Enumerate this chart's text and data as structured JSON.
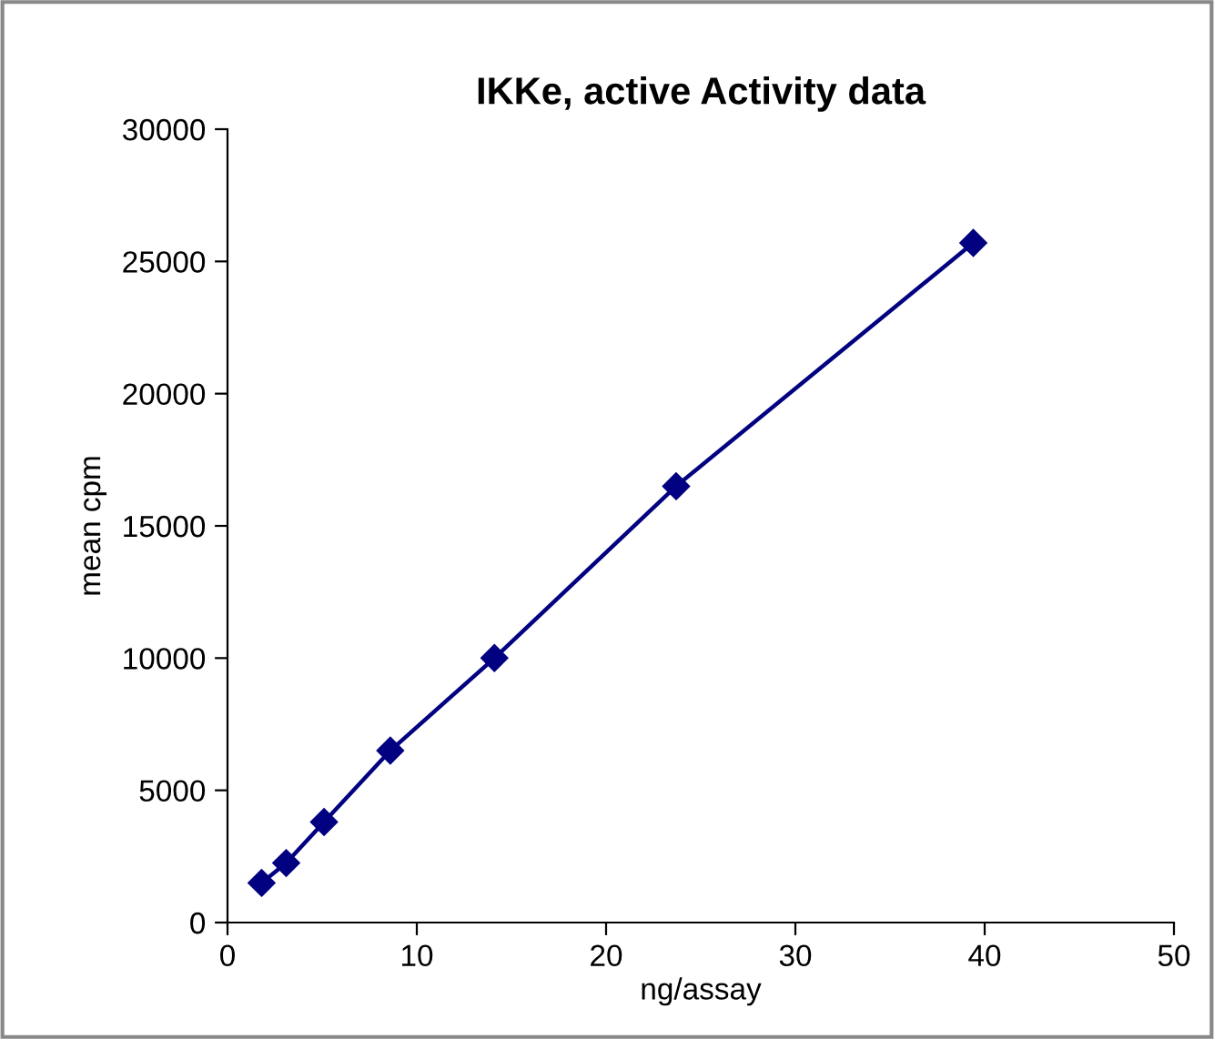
{
  "chart_data": {
    "type": "line",
    "title": "IKKe, active Activity data",
    "xlabel": "ng/assay",
    "ylabel": "mean cpm",
    "x": [
      1.8,
      3.1,
      5.1,
      8.6,
      14.1,
      23.7,
      39.4
    ],
    "series": [
      {
        "color": "#000080",
        "values": [
          1500,
          2250,
          3800,
          6500,
          10000,
          16500,
          25700
        ]
      }
    ],
    "marker": "diamond",
    "line_style": "solid",
    "grid": false,
    "legend": false,
    "xlim": [
      0,
      50
    ],
    "xticks": [
      0,
      10,
      20,
      30,
      40,
      50
    ],
    "ylim": [
      0,
      30000
    ],
    "yticks": [
      0,
      5000,
      10000,
      15000,
      20000,
      25000,
      30000
    ]
  }
}
